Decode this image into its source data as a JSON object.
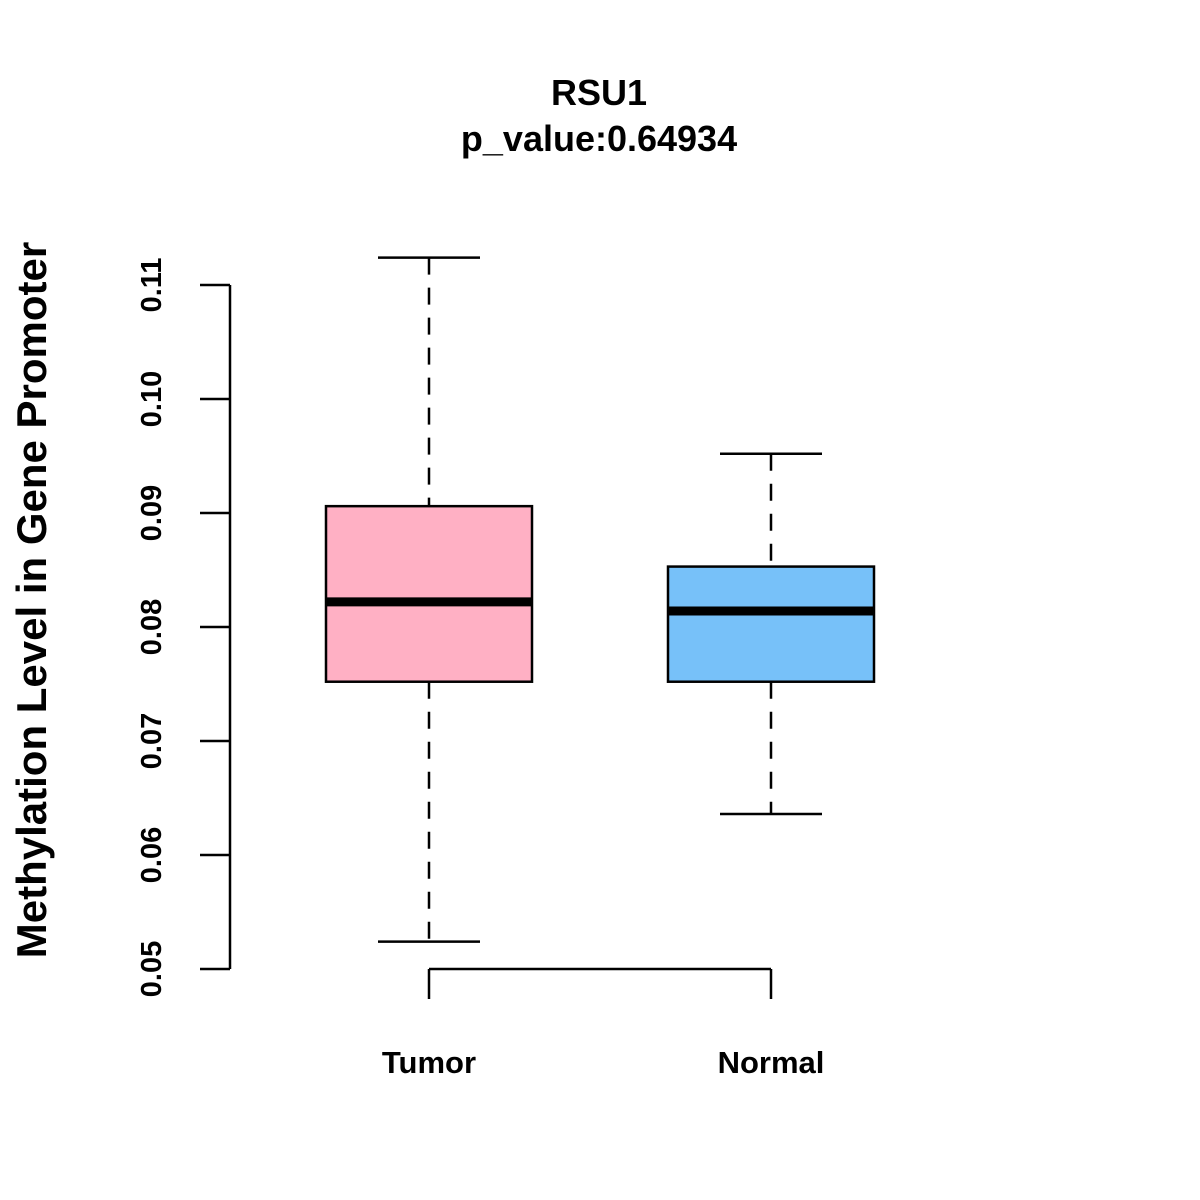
{
  "chart_data": {
    "type": "boxplot",
    "title": "RSU1",
    "subtitle": "p_value:0.64934",
    "xlabel": "",
    "ylabel": "Methylation Level in Gene Promoter",
    "ylim": [
      0.05,
      0.11
    ],
    "yticks": [
      0.05,
      0.06,
      0.07,
      0.08,
      0.09,
      0.1,
      0.11
    ],
    "ytick_labels": [
      "0.05",
      "0.06",
      "0.07",
      "0.08",
      "0.09",
      "0.10",
      "0.11"
    ],
    "grid": false,
    "legend": "none",
    "categories": [
      "Tumor",
      "Normal"
    ],
    "series": [
      {
        "name": "Tumor",
        "min": 0.0524,
        "q1": 0.0752,
        "median": 0.0822,
        "q3": 0.0906,
        "max": 0.1124,
        "color": "#FFB0C4"
      },
      {
        "name": "Normal",
        "min": 0.0636,
        "q1": 0.0752,
        "median": 0.0814,
        "q3": 0.0853,
        "max": 0.0952,
        "color": "#77C1F9"
      }
    ]
  }
}
